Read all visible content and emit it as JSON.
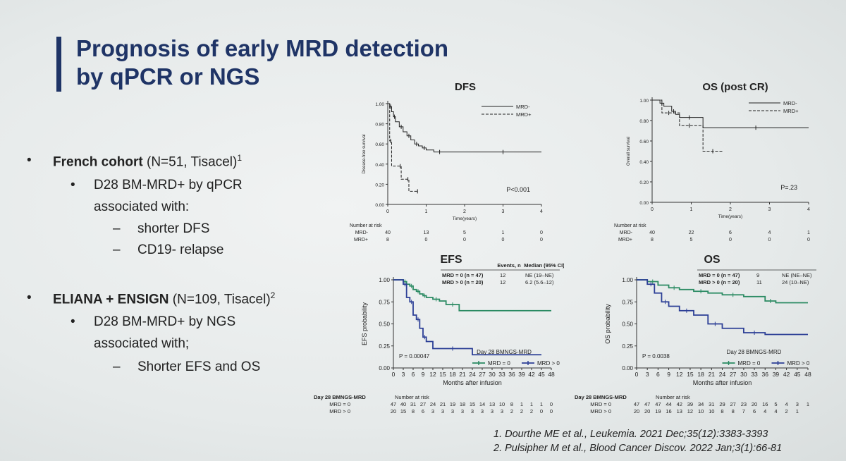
{
  "slide": {
    "title_line1": "Prognosis of early MRD detection",
    "title_line2": "by qPCR or NGS",
    "bullets": [
      {
        "level": 1,
        "marker": "•",
        "bold": "French cohort",
        "text": " (N=51, Tisacel)",
        "sup": "1"
      },
      {
        "level": 2,
        "marker": "•",
        "text": "D28 BM-MRD+ by qPCR"
      },
      {
        "level": 2,
        "marker": "",
        "text": "associated with:"
      },
      {
        "level": 3,
        "marker": "–",
        "text": "shorter DFS"
      },
      {
        "level": 3,
        "marker": "–",
        "text": "CD19- relapse"
      },
      {
        "level": 1,
        "marker": "•",
        "bold": "ELIANA + ENSIGN",
        "text": " (N=109, Tisacel)",
        "sup": "2"
      },
      {
        "level": 2,
        "marker": "•",
        "text": "D28 BM-MRD+ by NGS"
      },
      {
        "level": 2,
        "marker": "",
        "text": "associated with;"
      },
      {
        "level": 3,
        "marker": "–",
        "text": "Shorter EFS and OS"
      }
    ],
    "references": [
      "1.   Dourthe ME et al., Leukemia. 2021 Dec;35(12):3383-3393",
      "2.   Pulsipher M et al., Blood Cancer Discov. 2022 Jan;3(1):66-81"
    ]
  },
  "colors": {
    "title": "#1f3466",
    "green": "#2a8a62",
    "blue": "#2c3f96",
    "ink": "#222222"
  },
  "chart_data": [
    {
      "id": "dfs",
      "type": "line",
      "title": "DFS",
      "ylabel": "Disease-free survival",
      "xlabel": "Time(years)",
      "xlim": [
        0,
        4
      ],
      "ylim": [
        0,
        1
      ],
      "xticks": [
        0,
        1,
        2,
        3,
        4
      ],
      "yticks": [
        0,
        0.2,
        0.4,
        0.6,
        0.8,
        1.0
      ],
      "ytick_labels": [
        "0.00",
        "0.20",
        "0.40",
        "0.60",
        "0.80",
        "1.00"
      ],
      "annotation": "P<0.001",
      "series": [
        {
          "name": "MRD-",
          "style": "solid",
          "x": [
            0,
            0.05,
            0.1,
            0.15,
            0.2,
            0.3,
            0.4,
            0.5,
            0.6,
            0.7,
            0.8,
            0.9,
            1.0,
            1.2,
            1.5,
            2.0,
            4.0
          ],
          "y": [
            1.0,
            0.97,
            0.92,
            0.87,
            0.82,
            0.77,
            0.72,
            0.68,
            0.64,
            0.6,
            0.58,
            0.56,
            0.54,
            0.52,
            0.52,
            0.52,
            0.52
          ]
        },
        {
          "name": "MRD+",
          "style": "dashed",
          "x": [
            0,
            0.05,
            0.1,
            0.3,
            0.35,
            0.5,
            0.55,
            0.75,
            0.8
          ],
          "y": [
            1.0,
            0.63,
            0.38,
            0.38,
            0.25,
            0.25,
            0.13,
            0.13,
            0.13
          ]
        }
      ],
      "risk_table": {
        "header": "Number at risk",
        "x": [
          0,
          1,
          2,
          3,
          4
        ],
        "rows": [
          {
            "label": "MRD-",
            "values": [
              "40",
              "13",
              "5",
              "1",
              "0"
            ]
          },
          {
            "label": "MRD+",
            "values": [
              "8",
              "0",
              "0",
              "0",
              "0"
            ]
          }
        ]
      }
    },
    {
      "id": "os_cr",
      "type": "line",
      "title": "OS (post CR)",
      "ylabel": "Overall survival",
      "xlabel": "Time(years)",
      "xlim": [
        0,
        4
      ],
      "ylim": [
        0,
        1
      ],
      "xticks": [
        0,
        1,
        2,
        3,
        4
      ],
      "yticks": [
        0,
        0.2,
        0.4,
        0.6,
        0.8,
        1.0
      ],
      "ytick_labels": [
        "0.00",
        "0.20",
        "0.40",
        "0.60",
        "0.80",
        "1.00"
      ],
      "annotation": "P=.23",
      "series": [
        {
          "name": "MRD-",
          "style": "solid",
          "x": [
            0,
            0.2,
            0.3,
            0.5,
            0.6,
            0.7,
            1.2,
            1.3,
            4.0
          ],
          "y": [
            1.0,
            0.97,
            0.94,
            0.89,
            0.86,
            0.83,
            0.83,
            0.73,
            0.73
          ]
        },
        {
          "name": "MRD+",
          "style": "dashed",
          "x": [
            0,
            0.25,
            0.6,
            0.7,
            1.2,
            1.3,
            1.8
          ],
          "y": [
            1.0,
            0.875,
            0.875,
            0.75,
            0.75,
            0.5,
            0.5
          ]
        }
      ],
      "risk_table": {
        "header": "Number at risk",
        "x": [
          0,
          1,
          2,
          3,
          4
        ],
        "rows": [
          {
            "label": "MRD-",
            "values": [
              "40",
              "22",
              "6",
              "4",
              "1"
            ]
          },
          {
            "label": "MRD+",
            "values": [
              "8",
              "5",
              "0",
              "0",
              "0"
            ]
          }
        ]
      }
    },
    {
      "id": "efs",
      "type": "line",
      "title": "EFS",
      "ylabel": "EFS probability",
      "xlabel": "Months after infusion",
      "xlim": [
        0,
        48
      ],
      "ylim": [
        0,
        1
      ],
      "xticks": [
        0,
        3,
        6,
        9,
        12,
        15,
        18,
        21,
        24,
        27,
        30,
        33,
        36,
        39,
        42,
        45,
        48
      ],
      "yticks": [
        0,
        0.25,
        0.5,
        0.75,
        1.0
      ],
      "ytick_labels": [
        "0.00",
        "0.25",
        "0.50",
        "0.75",
        "1.00"
      ],
      "annotation": "P = 0.00047",
      "legend_title": "Day 28 BMNGS-MRD",
      "stats_table": {
        "headers": [
          "",
          "Events, n",
          "Median (95% CI)"
        ],
        "rows": [
          [
            "MRD = 0 (n = 47)",
            "12",
            "NE (19–NE)"
          ],
          [
            "MRD > 0 (n = 20)",
            "12",
            "6.2 (5.6–12)"
          ]
        ]
      },
      "series": [
        {
          "name": "MRD = 0",
          "color": "green",
          "x": [
            0,
            3,
            4,
            5,
            6,
            7,
            8,
            9,
            10,
            12,
            14,
            16,
            20,
            48
          ],
          "y": [
            1.0,
            0.98,
            0.95,
            0.93,
            0.89,
            0.87,
            0.84,
            0.82,
            0.8,
            0.78,
            0.76,
            0.72,
            0.65,
            0.65
          ]
        },
        {
          "name": "MRD > 0",
          "color": "blue",
          "x": [
            0,
            3,
            4,
            5,
            6,
            7,
            8,
            9,
            10,
            12,
            24,
            45
          ],
          "y": [
            1.0,
            0.95,
            0.8,
            0.75,
            0.6,
            0.55,
            0.45,
            0.35,
            0.3,
            0.22,
            0.15,
            0.15
          ]
        }
      ],
      "risk_table": {
        "header_left": "Day 28 BMNGS-MRD",
        "header": "Number at risk",
        "x": [
          0,
          3,
          6,
          9,
          12,
          15,
          18,
          21,
          24,
          27,
          30,
          33,
          36,
          39,
          42,
          45,
          48
        ],
        "rows": [
          {
            "label": "MRD = 0",
            "values": [
              "47",
              "40",
              "31",
              "27",
              "24",
              "21",
              "19",
              "18",
              "15",
              "14",
              "13",
              "10",
              "8",
              "1",
              "1",
              "1",
              "0"
            ]
          },
          {
            "label": "MRD > 0",
            "values": [
              "20",
              "15",
              "8",
              "6",
              "3",
              "3",
              "3",
              "3",
              "3",
              "3",
              "3",
              "3",
              "2",
              "2",
              "2",
              "0",
              "0"
            ]
          }
        ]
      }
    },
    {
      "id": "os",
      "type": "line",
      "title": "OS",
      "ylabel": "OS probability",
      "xlabel": "Months after infusion",
      "xlim": [
        0,
        48
      ],
      "ylim": [
        0,
        1
      ],
      "xticks": [
        0,
        3,
        6,
        9,
        12,
        15,
        18,
        21,
        24,
        27,
        30,
        33,
        36,
        39,
        42,
        45,
        48
      ],
      "yticks": [
        0,
        0.25,
        0.5,
        0.75,
        1.0
      ],
      "ytick_labels": [
        "0.00",
        "0.25",
        "0.50",
        "0.75",
        "1.00"
      ],
      "annotation": "P = 0.0038",
      "legend_title": "Day 28 BMNGS-MRD",
      "stats_table": {
        "headers": [],
        "rows": [
          [
            "MRD = 0 (n = 47)",
            "9",
            "NE (NE–NE)"
          ],
          [
            "MRD > 0 (n = 20)",
            "11",
            "24 (10–NE)"
          ]
        ]
      },
      "series": [
        {
          "name": "MRD = 0",
          "color": "green",
          "x": [
            0,
            3,
            6,
            9,
            12,
            16,
            20,
            24,
            30,
            36,
            39,
            48
          ],
          "y": [
            1.0,
            0.98,
            0.94,
            0.91,
            0.89,
            0.87,
            0.85,
            0.83,
            0.81,
            0.76,
            0.74,
            0.74
          ]
        },
        {
          "name": "MRD > 0",
          "color": "blue",
          "x": [
            0,
            3,
            5,
            7,
            9,
            12,
            16,
            20,
            24,
            30,
            36,
            48
          ],
          "y": [
            1.0,
            0.95,
            0.85,
            0.75,
            0.7,
            0.65,
            0.6,
            0.5,
            0.45,
            0.4,
            0.38,
            0.38
          ]
        }
      ],
      "risk_table": {
        "header_left": "Day 28 BMNGS-MRD",
        "header": "Number at risk",
        "x": [
          0,
          3,
          6,
          9,
          12,
          15,
          18,
          21,
          24,
          27,
          30,
          33,
          36,
          39,
          42,
          45,
          48
        ],
        "rows": [
          {
            "label": "MRD = 0",
            "values": [
              "47",
              "47",
              "47",
              "44",
              "42",
              "39",
              "34",
              "31",
              "29",
              "27",
              "23",
              "20",
              "16",
              "5",
              "4",
              "3",
              "1"
            ]
          },
          {
            "label": "MRD > 0",
            "values": [
              "20",
              "20",
              "19",
              "16",
              "13",
              "12",
              "10",
              "10",
              "8",
              "8",
              "7",
              "6",
              "4",
              "4",
              "2",
              "1",
              ""
            ]
          }
        ]
      }
    }
  ]
}
